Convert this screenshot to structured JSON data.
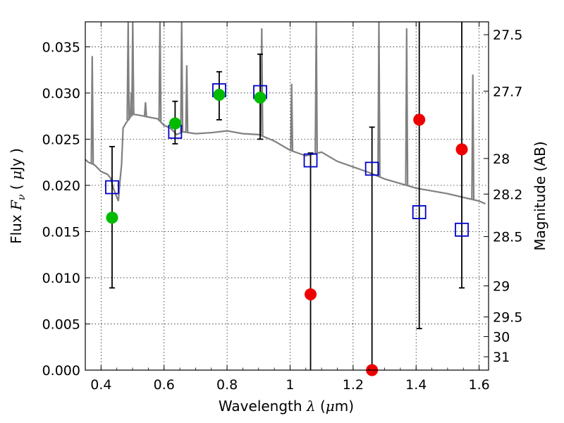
{
  "chart_data": {
    "type": "scatter",
    "xlabel_parts": [
      "Wavelength  ",
      "λ",
      " (",
      "μ",
      "m)"
    ],
    "ylabel_parts": [
      "Flux  ",
      "F",
      "ν",
      "  ( ",
      "μ",
      "Jy )"
    ],
    "y2label": "Magnitude (AB)",
    "xlim": [
      0.35,
      1.63
    ],
    "ylim": [
      0.0,
      0.0377
    ],
    "grid": true,
    "x_ticks": [
      {
        "value": 0.4,
        "label": "0.4"
      },
      {
        "value": 0.6,
        "label": "0.6"
      },
      {
        "value": 0.8,
        "label": "0.8"
      },
      {
        "value": 1.0,
        "label": "1"
      },
      {
        "value": 1.2,
        "label": "1.2"
      },
      {
        "value": 1.4,
        "label": "1.4"
      },
      {
        "value": 1.6,
        "label": "1.6"
      }
    ],
    "y_ticks": [
      {
        "value": 0.0,
        "label": "0.000"
      },
      {
        "value": 0.005,
        "label": "0.005"
      },
      {
        "value": 0.01,
        "label": "0.010"
      },
      {
        "value": 0.015,
        "label": "0.015"
      },
      {
        "value": 0.02,
        "label": "0.020"
      },
      {
        "value": 0.025,
        "label": "0.025"
      },
      {
        "value": 0.03,
        "label": "0.030"
      },
      {
        "value": 0.035,
        "label": "0.035"
      }
    ],
    "mag_ticks": [
      {
        "label": "27.5",
        "mag": 27.5
      },
      {
        "label": "27.7",
        "mag": 27.7
      },
      {
        "label": "28",
        "mag": 28.0
      },
      {
        "label": "28.2",
        "mag": 28.2
      },
      {
        "label": "28.5",
        "mag": 28.5
      },
      {
        "label": "29",
        "mag": 29.0
      },
      {
        "label": "29.5",
        "mag": 29.5
      },
      {
        "label": "30",
        "mag": 30.0
      },
      {
        "label": "31",
        "mag": 31.0
      }
    ],
    "series": [
      {
        "kind": "model-spectrum",
        "color": "#808080",
        "x": [
          0.35,
          0.36,
          0.38,
          0.4,
          0.42,
          0.43,
          0.44,
          0.455,
          0.46,
          0.465,
          0.47,
          0.48,
          0.5,
          0.52,
          0.55,
          0.58,
          0.6,
          0.62,
          0.64,
          0.66,
          0.7,
          0.75,
          0.8,
          0.85,
          0.9,
          0.95,
          1.0,
          1.05,
          1.1,
          1.15,
          1.2,
          1.25,
          1.3,
          1.35,
          1.4,
          1.45,
          1.5,
          1.55,
          1.6,
          1.62
        ],
        "y": [
          0.0228,
          0.0225,
          0.0222,
          0.0215,
          0.0212,
          0.0208,
          0.0196,
          0.0183,
          0.0205,
          0.0222,
          0.0262,
          0.0268,
          0.0277,
          0.0276,
          0.0274,
          0.0272,
          0.0265,
          0.0262,
          0.0255,
          0.0258,
          0.0256,
          0.0257,
          0.0259,
          0.0256,
          0.0255,
          0.0248,
          0.0238,
          0.0232,
          0.0236,
          0.0226,
          0.022,
          0.0214,
          0.0207,
          0.0202,
          0.0197,
          0.0194,
          0.0191,
          0.0187,
          0.0183,
          0.018
        ]
      },
      {
        "kind": "emission-lines",
        "color": "#808080",
        "lines": [
          {
            "x": 0.372,
            "peak": 0.034
          },
          {
            "x": 0.486,
            "peak": 0.0377
          },
          {
            "x": 0.496,
            "peak": 0.03
          },
          {
            "x": 0.5007,
            "peak": 0.0377
          },
          {
            "x": 0.541,
            "peak": 0.029
          },
          {
            "x": 0.587,
            "peak": 0.0377
          },
          {
            "x": 0.656,
            "peak": 0.0377
          },
          {
            "x": 0.672,
            "peak": 0.033
          },
          {
            "x": 0.91,
            "peak": 0.037
          },
          {
            "x": 1.005,
            "peak": 0.031
          },
          {
            "x": 1.083,
            "peak": 0.0377
          },
          {
            "x": 1.282,
            "peak": 0.0377
          },
          {
            "x": 1.37,
            "peak": 0.037
          },
          {
            "x": 1.58,
            "peak": 0.032
          }
        ]
      },
      {
        "kind": "model-photometry",
        "marker": "open-square",
        "color": "#0000cc",
        "x": [
          0.435,
          0.635,
          0.775,
          0.905,
          1.065,
          1.26,
          1.41,
          1.545
        ],
        "y": [
          0.0198,
          0.0258,
          0.0303,
          0.0301,
          0.0227,
          0.0218,
          0.0171,
          0.0152
        ]
      },
      {
        "kind": "detections",
        "marker": "filled-circle",
        "color": "#00bb00",
        "x": [
          0.435,
          0.635,
          0.775,
          0.905
        ],
        "y": [
          0.0165,
          0.0267,
          0.0298,
          0.0295
        ],
        "yerr_low": [
          0.0089,
          0.0245,
          0.0271,
          0.025
        ],
        "yerr_high": [
          0.0242,
          0.0291,
          0.0323,
          0.0342
        ]
      },
      {
        "kind": "non-detections",
        "marker": "filled-circle",
        "color": "#ee0000",
        "x": [
          1.065,
          1.26,
          1.41,
          1.545
        ],
        "y": [
          0.0082,
          0.0,
          0.0271,
          0.0239
        ],
        "yerr_low": [
          0.0,
          0.0,
          0.0045,
          0.0089
        ],
        "yerr_high": [
          0.0235,
          0.0263,
          0.0377,
          0.0377
        ]
      }
    ]
  }
}
